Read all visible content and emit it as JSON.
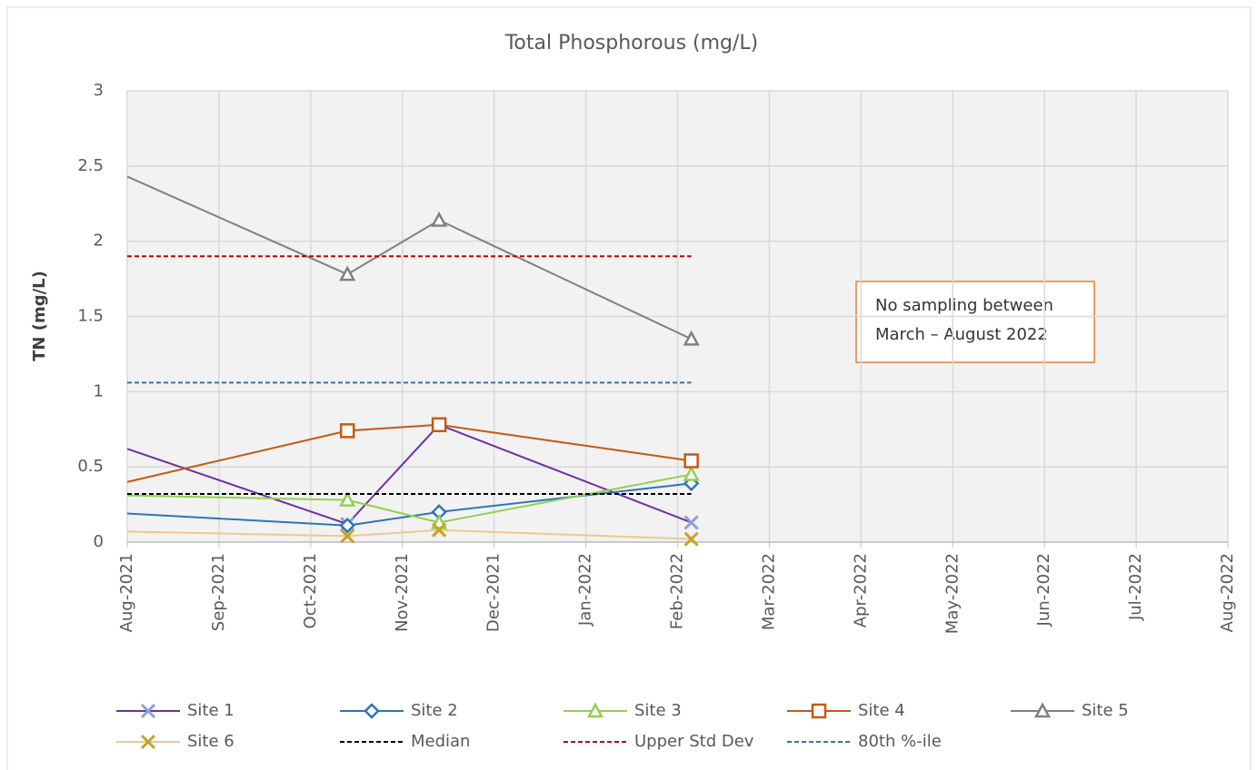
{
  "chart_data": {
    "type": "line",
    "title": "Total Phosphorous (mg/L)",
    "y_label": "TN (mg/L)",
    "annotation": [
      "No sampling between",
      "March – August 2022"
    ],
    "xlim": [
      0,
      12
    ],
    "xticks": [
      {
        "value": 0,
        "label": "Aug-2021"
      },
      {
        "value": 1,
        "label": "Sep-2021"
      },
      {
        "value": 2,
        "label": "Oct-2021"
      },
      {
        "value": 3,
        "label": "Nov-2021"
      },
      {
        "value": 4,
        "label": "Dec-2021"
      },
      {
        "value": 5,
        "label": "Jan-2022"
      },
      {
        "value": 6,
        "label": "Feb-2022"
      },
      {
        "value": 7,
        "label": "Mar-2022"
      },
      {
        "value": 8,
        "label": "Apr-2022"
      },
      {
        "value": 9,
        "label": "May-2022"
      },
      {
        "value": 10,
        "label": "Jun-2022"
      },
      {
        "value": 11,
        "label": "Jul-2022"
      },
      {
        "value": 12,
        "label": "Aug-2022"
      }
    ],
    "ylim": [
      0,
      3
    ],
    "yticks": [
      0,
      0.5,
      1,
      1.5,
      2,
      2.5,
      3
    ],
    "grid": true,
    "legend": "bottom",
    "series": [
      {
        "name": "Site 1",
        "color": "#7030a0",
        "marker_color": "#8e9fdc",
        "marker": "x",
        "x": [
          0,
          2.4,
          3.4,
          6.15
        ],
        "values": [
          0.62,
          0.12,
          0.78,
          0.13
        ]
      },
      {
        "name": "Site 2",
        "color": "#2e75b6",
        "marker_color": "#2e75b6",
        "marker": "diamond",
        "x": [
          0,
          2.4,
          3.4,
          6.15
        ],
        "values": [
          0.19,
          0.11,
          0.2,
          0.39
        ]
      },
      {
        "name": "Site 3",
        "color": "#92d050",
        "marker_color": "#92d050",
        "marker": "triangle",
        "x": [
          0,
          2.4,
          3.4,
          6.15
        ],
        "values": [
          0.31,
          0.28,
          0.13,
          0.45
        ]
      },
      {
        "name": "Site 4",
        "color": "#c55a11",
        "marker_color": "#c55a11",
        "marker": "square",
        "x": [
          0,
          2.4,
          3.4,
          6.15
        ],
        "values": [
          0.4,
          0.74,
          0.78,
          0.54
        ]
      },
      {
        "name": "Site 5",
        "color": "#808080",
        "marker_color": "#808080",
        "marker": "triangle",
        "x": [
          0,
          2.4,
          3.4,
          6.15
        ],
        "values": [
          2.43,
          1.78,
          2.14,
          1.35
        ]
      },
      {
        "name": "Site 6",
        "color": "#edc98a",
        "marker_color": "#c9a227",
        "marker": "x",
        "x": [
          0,
          2.4,
          3.4,
          6.15
        ],
        "values": [
          0.07,
          0.04,
          0.08,
          0.02
        ]
      },
      {
        "name": "Median",
        "color": "#000000",
        "dash": true,
        "x": [
          0,
          6.15
        ],
        "values": [
          0.32,
          0.32
        ]
      },
      {
        "name": "Upper Std Dev",
        "color": "#c00000",
        "dash": true,
        "x": [
          0,
          6.15
        ],
        "values": [
          1.9,
          1.9
        ]
      },
      {
        "name": "80th %-ile",
        "color": "#2e75b6",
        "dash": true,
        "x": [
          0,
          6.15
        ],
        "values": [
          1.06,
          1.06
        ]
      }
    ]
  }
}
